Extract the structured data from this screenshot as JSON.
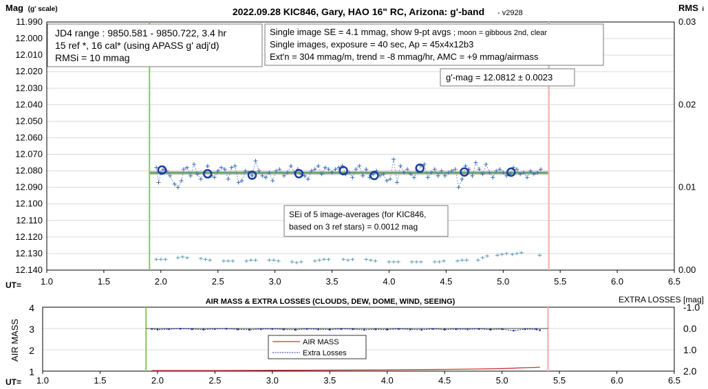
{
  "chart_data": [
    {
      "type": "scatter",
      "title": "2022.09.28 KIC846, Gary, HAO 16\" RC, Arizona: g'-band",
      "version": "- v2928",
      "ylabel": "Mag",
      "ylabel_sub": "(g' scale)",
      "y2label": "RMS",
      "y2label_sub": "i",
      "xlabel": "UT=",
      "xlim": [
        1.0,
        6.5
      ],
      "ylim": [
        12.14,
        11.99
      ],
      "y2lim": [
        0.0,
        0.03
      ],
      "grid": true,
      "x_ticks": [
        "1.0",
        "1.5",
        "2.0",
        "2.5",
        "3.0",
        "3.5",
        "4.0",
        "4.5",
        "5.0",
        "5.5",
        "6.0",
        "6.5"
      ],
      "y_ticks": [
        "11.990",
        "12.000",
        "12.010",
        "12.020",
        "12.030",
        "12.040",
        "12.050",
        "12.060",
        "12.070",
        "12.080",
        "12.090",
        "12.100",
        "12.110",
        "12.120",
        "12.130",
        "12.140"
      ],
      "y2_ticks": [
        "0.03",
        "0.02",
        "0.01",
        "0.00"
      ],
      "start_marker_x": 1.9,
      "end_marker_x": 5.4,
      "trend_y": 12.0812,
      "series": [
        {
          "name": "",
          "x": [
            1.96,
            1.98,
            2.0,
            2.02,
            2.05,
            2.08,
            2.12,
            2.15,
            2.18,
            2.2,
            2.23,
            2.26,
            2.29,
            2.32,
            2.35,
            2.38,
            2.41,
            2.44,
            2.47,
            2.5,
            2.53,
            2.56,
            2.59,
            2.62,
            2.65,
            2.68,
            2.71,
            2.74,
            2.77,
            2.8,
            2.83,
            2.86,
            2.89,
            2.92,
            2.95,
            2.98,
            3.01,
            3.04,
            3.08,
            3.11,
            3.14,
            3.17,
            3.2,
            3.23,
            3.26,
            3.29,
            3.32,
            3.35,
            3.38,
            3.41,
            3.44,
            3.47,
            3.5,
            3.53,
            3.56,
            3.59,
            3.62,
            3.65,
            3.68,
            3.71,
            3.74,
            3.77,
            3.8,
            3.83,
            3.86,
            3.89,
            3.92,
            3.95,
            3.98,
            4.01,
            4.04,
            4.07,
            4.1,
            4.13,
            4.16,
            4.19,
            4.22,
            4.25,
            4.28,
            4.31,
            4.34,
            4.37,
            4.4,
            4.43,
            4.46,
            4.49,
            4.52,
            4.55,
            4.58,
            4.61,
            4.64,
            4.67,
            4.7,
            4.73,
            4.76,
            4.79,
            4.82,
            4.85,
            4.88,
            4.91,
            4.94,
            4.97,
            5.0,
            5.03,
            5.06,
            5.09,
            5.12,
            5.15,
            5.18,
            5.21,
            5.24,
            5.27,
            5.3,
            5.33
          ],
          "y": [
            12.078,
            12.087,
            12.081,
            12.079,
            12.08,
            12.083,
            12.088,
            12.09,
            12.086,
            12.079,
            12.078,
            12.083,
            12.076,
            12.082,
            12.085,
            12.081,
            12.077,
            12.083,
            12.084,
            12.08,
            12.078,
            12.079,
            12.085,
            12.078,
            12.077,
            12.087,
            12.086,
            12.08,
            12.081,
            12.083,
            12.074,
            12.08,
            12.083,
            12.084,
            12.081,
            12.086,
            12.08,
            12.079,
            12.083,
            12.081,
            12.077,
            12.081,
            12.079,
            12.082,
            12.083,
            12.085,
            12.08,
            12.079,
            12.077,
            12.082,
            12.078,
            12.079,
            12.081,
            12.079,
            12.078,
            12.077,
            12.082,
            12.081,
            12.084,
            12.079,
            12.077,
            12.083,
            12.079,
            12.084,
            12.082,
            12.08,
            12.083,
            12.082,
            12.086,
            12.085,
            12.073,
            12.087,
            12.077,
            12.081,
            12.079,
            12.082,
            12.084,
            12.08,
            12.077,
            12.076,
            12.084,
            12.081,
            12.079,
            12.083,
            12.08,
            12.083,
            12.081,
            12.08,
            12.079,
            12.09,
            12.085,
            12.077,
            12.079,
            12.083,
            12.075,
            12.079,
            12.082,
            12.076,
            12.081,
            12.084,
            12.08,
            12.079,
            12.081,
            12.083,
            12.082,
            12.078,
            12.079,
            12.082,
            12.081,
            12.084,
            12.08,
            12.082,
            12.081,
            12.079
          ]
        },
        {
          "name": "",
          "x": [
            2.01,
            2.41,
            2.8,
            3.21,
            3.6,
            3.87,
            4.27,
            4.66,
            5.07
          ],
          "y": [
            12.0795,
            12.0818,
            12.0826,
            12.0817,
            12.0799,
            12.0828,
            12.0784,
            12.0807,
            12.0808
          ]
        },
        {
          "name": "",
          "x": [
            1.96,
            2.0,
            2.04,
            2.15,
            2.19,
            2.23,
            2.35,
            2.39,
            2.43,
            2.55,
            2.59,
            2.63,
            2.75,
            2.79,
            2.83,
            2.95,
            2.99,
            3.03,
            3.15,
            3.19,
            3.23,
            3.35,
            3.39,
            3.43,
            3.47,
            3.6,
            3.64,
            3.68,
            3.8,
            3.84,
            3.88,
            4.0,
            4.04,
            4.08,
            4.2,
            4.24,
            4.28,
            4.4,
            4.44,
            4.48,
            4.6,
            4.64,
            4.68,
            4.78,
            4.82,
            4.86,
            4.95,
            4.99,
            5.03,
            5.08,
            5.12,
            5.16,
            5.32
          ],
          "y": [
            0.0013,
            0.0013,
            0.0013,
            0.0015,
            0.0016,
            0.0015,
            0.0014,
            0.0013,
            0.0012,
            0.0011,
            0.0011,
            0.0011,
            0.0011,
            0.0012,
            0.0012,
            0.0012,
            0.0012,
            0.0011,
            0.001,
            0.0009,
            0.001,
            0.0011,
            0.0012,
            0.0013,
            0.0013,
            0.0013,
            0.0012,
            0.0013,
            0.0013,
            0.0012,
            0.0011,
            0.001,
            0.001,
            0.001,
            0.001,
            0.001,
            0.001,
            0.001,
            0.001,
            0.0011,
            0.0011,
            0.0012,
            0.0012,
            0.0012,
            0.0015,
            0.0017,
            0.0018,
            0.0019,
            0.002,
            0.0019,
            0.002,
            0.0021,
            0.0018
          ]
        }
      ],
      "annotations": {
        "jd_box": [
          "JD4 range : 9850.581 - 9850.722,  3.4 hr",
          "15 ref *, 16 cal* (using APASS g' adj'd)",
          "RMSi = 10 mmag"
        ],
        "se_box": [
          "Single image SE = 4.1 mmag, show  9-pt avgs",
          "; moon = gibbous 2nd, clear",
          "Single images, exposure = 40 sec, Ap = 45x4x12b3",
          "Ext'n = 304 mmag/m, trend = -8 mmag/hr, AMC = +9 mmag/airmass"
        ],
        "gmag_box": "g'-mag = 12.0812 ± 0.0023",
        "sei_box": [
          "SEi of 5 image-averages (for KIC846,",
          "based on 3 ref stars) = 0.0012 mag"
        ]
      }
    },
    {
      "type": "line",
      "title": "AIR MASS & EXTRA LOSSES (CLOUDS, DEW, DOME, WIND, SEEING)",
      "ylabel": "AIR MASS",
      "y2label": "EXTRA LOSSES [mag]",
      "xlabel": "UT=",
      "xlim": [
        1.0,
        6.5
      ],
      "ylim": [
        1,
        4
      ],
      "y2lim": [
        2.0,
        -1.0
      ],
      "x_ticks": [
        "1.0",
        "1.5",
        "2.0",
        "2.5",
        "3.0",
        "3.5",
        "4.0",
        "4.5",
        "5.0",
        "5.5",
        "6.0",
        "6.5"
      ],
      "y_ticks": [
        "4",
        "3",
        "2",
        "1"
      ],
      "y2_ticks": [
        "-1.0",
        "0.0",
        "1.0",
        "2.0"
      ],
      "start_marker_x": 1.9,
      "end_marker_x": 5.4,
      "legend": [
        "AIR MASS",
        "Extra Losses"
      ],
      "legend_position": "center",
      "series": [
        {
          "name": "AIR MASS",
          "x": [
            1.95,
            2.5,
            3.0,
            3.5,
            4.0,
            4.5,
            4.8,
            5.0,
            5.1,
            5.2,
            5.33
          ],
          "y": [
            1.03,
            1.03,
            1.04,
            1.05,
            1.06,
            1.08,
            1.1,
            1.12,
            1.14,
            1.16,
            1.18
          ]
        },
        {
          "name": "Extra Losses",
          "x": [
            1.95,
            2.0,
            2.1,
            2.2,
            2.3,
            2.4,
            2.5,
            2.6,
            2.7,
            2.8,
            2.9,
            3.0,
            3.1,
            3.2,
            3.3,
            3.4,
            3.5,
            3.6,
            3.7,
            3.8,
            3.9,
            4.0,
            4.1,
            4.2,
            4.3,
            4.4,
            4.5,
            4.6,
            4.7,
            4.8,
            4.9,
            5.0,
            5.1,
            5.2,
            5.3,
            5.33
          ],
          "y": [
            0.02,
            0.05,
            0.03,
            0.01,
            0.03,
            0.05,
            0.02,
            0.01,
            0.04,
            0.06,
            0.03,
            0.02,
            0.04,
            0.06,
            0.02,
            0.04,
            0.05,
            0.02,
            0.03,
            0.06,
            0.04,
            0.05,
            0.02,
            0.04,
            0.06,
            0.02,
            0.05,
            0.03,
            0.04,
            0.02,
            0.05,
            0.03,
            0.1,
            0.03,
            0.04,
            0.08
          ]
        }
      ]
    }
  ],
  "colors": {
    "points": "#3a6fb0",
    "averages": "#1a3c9c",
    "trend": "#4e9a4e",
    "trend_band": "#bbbbbb",
    "start_marker": "#88cc44",
    "end_marker": "#f4b8b8",
    "rms": "#5b9ab5",
    "airmass": "#cc3333",
    "extra_losses": "#1a2fa0",
    "grid": "#d9d9d9"
  }
}
